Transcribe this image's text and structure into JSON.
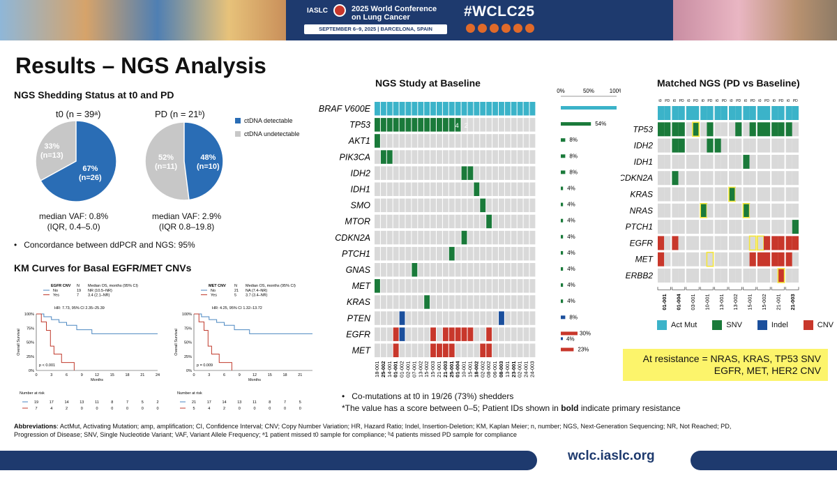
{
  "banner": {
    "org": "IASLC",
    "conf_line1": "2025 World Conference",
    "conf_line2": "on Lung Cancer",
    "dates": "SEPTEMBER 6–9, 2025 | BARCELONA, SPAIN",
    "hashtag": "#WCLC25"
  },
  "slide": {
    "title": "Results – NGS Analysis"
  },
  "shedding": {
    "title": "NGS Shedding Status at t0 and PD",
    "t0_label": "t0 (n = 39ᵃ)",
    "pd_label": "PD (n = 21ᵇ)",
    "t0_pie": {
      "detectable_pct": 67,
      "detectable_text": "67%",
      "detectable_n": "(n=26)",
      "undetectable_text": "33%",
      "undetectable_n": "(n=13)"
    },
    "pd_pie": {
      "detectable_pct": 48,
      "detectable_text": "48%",
      "detectable_n": "(n=10)",
      "undetectable_text": "52%",
      "undetectable_n": "(n=11)"
    },
    "legend": [
      {
        "label": "ctDNA detectable",
        "color": "#2a6db5"
      },
      {
        "label": "ctDNA undetectable",
        "color": "#c7c7c7"
      }
    ],
    "t0_vaf": "median VAF: 0.8%",
    "t0_iqr": "(IQR, 0.4–5.0)",
    "pd_vaf": "median VAF: 2.9%",
    "pd_iqr": "(IQR 0.8–19.8)",
    "concordance": "Concordance between ddPCR and NGS: 95%"
  },
  "km": {
    "title": "KM Curves for Basal EGFR/MET CNVs",
    "egfr": {
      "legend_header": [
        "EGFR CNV",
        "N",
        "Median OS, months (95% CI)"
      ],
      "rows": [
        [
          "No",
          "19",
          "NR (10.5–NR)"
        ],
        [
          "Yes",
          "7",
          "3.4 (2.1–NR)"
        ]
      ],
      "hr": "HR: 7.73, 95% CI 2.35–25.39",
      "p": "p < 0.001",
      "risk_no": [
        "19",
        "17",
        "14",
        "13",
        "11",
        "8",
        "7",
        "5",
        "2"
      ],
      "risk_yes": [
        "7",
        "4",
        "2",
        "0",
        "0",
        "0",
        "0",
        "0",
        "0"
      ]
    },
    "met": {
      "legend_header": [
        "MET CNV",
        "N",
        "Median OS, months (95% CI)"
      ],
      "rows": [
        [
          "No",
          "21",
          "NA (7.4–NR)"
        ],
        [
          "Yes",
          "5",
          "3.7 (3.4–NR)"
        ]
      ],
      "hr": "HR: 4.25, 95% CI 1.32–13.72",
      "p": "p = 0.009",
      "risk_no": [
        "21",
        "17",
        "14",
        "13",
        "11",
        "8",
        "7",
        "5",
        "2"
      ],
      "risk_yes": [
        "5",
        "4",
        "2",
        "0",
        "0",
        "0",
        "0",
        "0",
        "0"
      ]
    },
    "ylabel": "Overall Survival",
    "xlabel": "Months",
    "yticks": [
      "100%",
      "75%",
      "50%",
      "25%",
      "0%"
    ],
    "xticks": [
      "0",
      "3",
      "6",
      "9",
      "12",
      "15",
      "18",
      "21",
      "24"
    ],
    "risk_title": "Number at risk",
    "colors": {
      "no": "#4a86c0",
      "yes": "#c0392b"
    }
  },
  "oncoprint": {
    "title": "NGS Study at Baseline",
    "pct_ticks": [
      "0%",
      "50%",
      "100%"
    ],
    "genes": [
      "BRAF V600E",
      "TP53",
      "AKT1",
      "PIK3CA",
      "IDH2",
      "IDH1",
      "SMO",
      "MTOR",
      "CDKN2A",
      "PTCH1",
      "GNAS",
      "MET",
      "KRAS",
      "PTEN",
      "EGFR",
      "MET"
    ],
    "pct": [
      "",
      "54%",
      "8%",
      "8%",
      "8%",
      "4%",
      "4%",
      "4%",
      "4%",
      "4%",
      "4%",
      "4%",
      "4%",
      "8%",
      "30%",
      "23%"
    ],
    "pct_extra": "4%",
    "patients": [
      "18-001",
      "25-002",
      "14-001",
      "01-001",
      "01-002",
      "02-001",
      "07-001",
      "13-002",
      "15-002",
      "15-003",
      "21-001",
      "21-003",
      "25-001",
      "01-004",
      "10-001",
      "15-001",
      "18-002",
      "02-002",
      "08-002",
      "06-001",
      "08-003",
      "13-001",
      "23-001",
      "02-001",
      "24-001",
      "24-003"
    ],
    "bold_patients": [
      "25-002",
      "01-001",
      "21-003",
      "25-001",
      "01-004",
      "18-002",
      "08-003",
      "23-001"
    ],
    "tp53_score_a": "4",
    "tp53_score_b": "2",
    "co_mutations": "Co-mutations at t0 in 19/26 (73%) shedders",
    "note_pre": "*The value has a score between 0–5; Patient IDs shown in ",
    "note_bold": "bold",
    "note_post": " indicate primary resistance"
  },
  "matched": {
    "title": "Matched NGS (PD vs Baseline)",
    "col_labels": [
      "t0",
      "PD"
    ],
    "genes": [
      "TP53",
      "IDH2",
      "IDH1",
      "CDKN2A",
      "KRAS",
      "NRAS",
      "PTCH1",
      "EGFR",
      "MET",
      "ERBB2"
    ],
    "patients": [
      "01-001",
      "01-004",
      "03-001",
      "10-001",
      "13-001",
      "13-002",
      "15-001",
      "15-002",
      "21-001",
      "21-003"
    ],
    "bold_patients": [
      "01-001",
      "01-004",
      "21-003"
    ],
    "legend": [
      {
        "label": "Act Mut",
        "color": "#3bb3c9"
      },
      {
        "label": "SNV",
        "color": "#1a7a3a"
      },
      {
        "label": "Indel",
        "color": "#1b4f9c"
      },
      {
        "label": "CNV",
        "color": "#c8372b"
      }
    ],
    "resistance_line1": "At resistance = NRAS, KRAS, TP53 SNV",
    "resistance_line2": "EGFR, MET, HER2 CNV"
  },
  "abbrev": {
    "label": "Abbreviations",
    "text": ": ActMut, Activating Mutation; amp, amplification; CI, Confidence Interval; CNV; Copy Number Variation; HR, Hazard Ratio; Indel, Insertion-Deletion; KM, Kaplan Meier; n, number; NGS, Next-Generation Sequencing; NR, Not Reached; PD,",
    "text2": "Progression of Disease; SNV, Single Nucleotide Variant; VAF, Variant Allele Frequency; ᵃ1 patient missed t0 sample for compliance; ᵇ4 patients missed PD sample for compliance"
  },
  "footer": {
    "url": "wclc.iaslc.org"
  },
  "colors": {
    "act": "#3bb3c9",
    "snv": "#1a7a3a",
    "indel": "#1b4f9c",
    "cnv": "#c8372b",
    "empty": "#d9d9d9",
    "navy": "#1e3a6e"
  }
}
